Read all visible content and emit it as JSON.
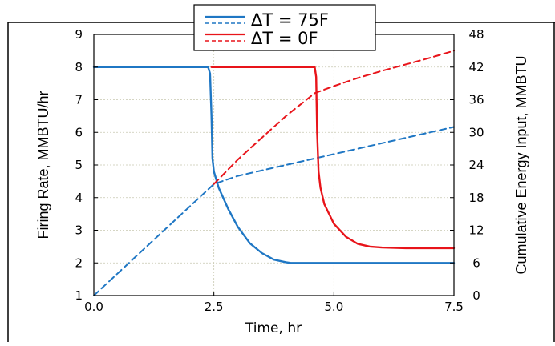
{
  "chart_data": {
    "type": "line",
    "xlabel": "Time, hr",
    "ylabel_left": "Firing Rate, MMBTU/hr",
    "ylabel_right": "Cumulative Energy Input, MMBTU",
    "xlim": [
      0,
      7.5
    ],
    "ylim_left": [
      1,
      9
    ],
    "ylim_right": [
      0,
      48
    ],
    "x_ticks": [
      "0.0",
      "2.5",
      "5.0",
      "7.5"
    ],
    "y_left_ticks": [
      "1",
      "2",
      "3",
      "4",
      "5",
      "6",
      "7",
      "8",
      "9"
    ],
    "y_right_ticks": [
      "0",
      "6",
      "12",
      "18",
      "24",
      "30",
      "36",
      "42",
      "48"
    ],
    "grid": true,
    "legend_position": "top-center",
    "legend": [
      {
        "label": "ΔT = 75F",
        "color": "#1f77c4"
      },
      {
        "label": "ΔT = 0F",
        "color": "#e8141a"
      }
    ],
    "series": [
      {
        "name": "ΔT = 75F",
        "axis": "left",
        "style": "solid",
        "color": "#1f77c4",
        "x": [
          0,
          2.0,
          2.38,
          2.42,
          2.45,
          2.47,
          2.5,
          2.6,
          2.8,
          3.0,
          3.25,
          3.5,
          3.75,
          4.0,
          4.1,
          5.0,
          7.5
        ],
        "y": [
          8,
          8,
          8,
          7.8,
          6.5,
          5.2,
          4.8,
          4.3,
          3.65,
          3.1,
          2.6,
          2.3,
          2.1,
          2.02,
          2.0,
          2.0,
          2.0
        ]
      },
      {
        "name": "ΔT = 75F",
        "axis": "right",
        "style": "dashed",
        "color": "#1f77c4",
        "x": [
          0,
          2.5,
          3.0,
          4.0,
          5.0,
          6.0,
          7.0,
          7.5
        ],
        "y": [
          0,
          20.5,
          22.0,
          24.0,
          26.0,
          28.0,
          30.0,
          31.0
        ]
      },
      {
        "name": "ΔT = 0F",
        "axis": "left",
        "style": "solid",
        "color": "#e8141a",
        "x": [
          2.45,
          4.5,
          4.6,
          4.63,
          4.65,
          4.68,
          4.72,
          4.8,
          5.0,
          5.25,
          5.5,
          5.75,
          6.0,
          6.5,
          7.5
        ],
        "y": [
          8,
          8,
          8,
          7.7,
          6.0,
          4.8,
          4.3,
          3.8,
          3.2,
          2.8,
          2.58,
          2.5,
          2.47,
          2.45,
          2.45
        ]
      },
      {
        "name": "ΔT = 0F",
        "axis": "right",
        "style": "dashed",
        "color": "#e8141a",
        "x": [
          2.5,
          3.0,
          3.5,
          4.0,
          4.6,
          5.0,
          5.5,
          6.0,
          6.5,
          7.0,
          7.5
        ],
        "y": [
          20.5,
          25.0,
          29.0,
          33.0,
          37.2,
          38.5,
          40.0,
          41.3,
          42.5,
          43.7,
          45.0
        ]
      }
    ]
  }
}
